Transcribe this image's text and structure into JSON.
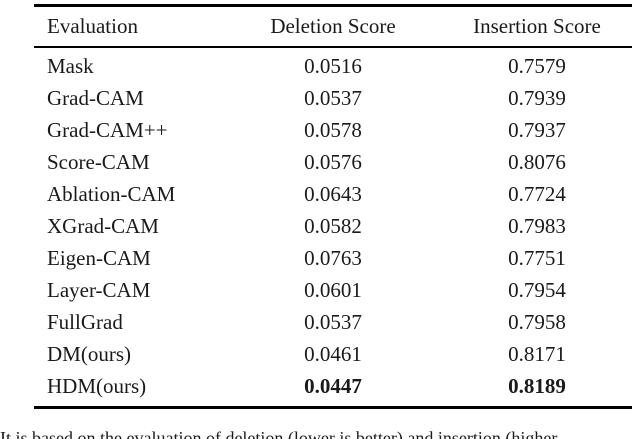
{
  "table": {
    "columns": [
      "Evaluation",
      "Deletion Score",
      "Insertion Score"
    ],
    "rows": [
      {
        "evaluation": "Mask",
        "deletion": "0.0516",
        "insertion": "0.7579",
        "bold_values": false
      },
      {
        "evaluation": "Grad-CAM",
        "deletion": "0.0537",
        "insertion": "0.7939",
        "bold_values": false
      },
      {
        "evaluation": "Grad-CAM++",
        "deletion": "0.0578",
        "insertion": "0.7937",
        "bold_values": false
      },
      {
        "evaluation": "Score-CAM",
        "deletion": "0.0576",
        "insertion": "0.8076",
        "bold_values": false
      },
      {
        "evaluation": "Ablation-CAM",
        "deletion": "0.0643",
        "insertion": "0.7724",
        "bold_values": false
      },
      {
        "evaluation": "XGrad-CAM",
        "deletion": "0.0582",
        "insertion": "0.7983",
        "bold_values": false
      },
      {
        "evaluation": "Eigen-CAM",
        "deletion": "0.0763",
        "insertion": "0.7751",
        "bold_values": false
      },
      {
        "evaluation": "Layer-CAM",
        "deletion": "0.0601",
        "insertion": "0.7954",
        "bold_values": false
      },
      {
        "evaluation": "FullGrad",
        "deletion": "0.0537",
        "insertion": "0.7958",
        "bold_values": false
      },
      {
        "evaluation": "DM(ours)",
        "deletion": "0.0461",
        "insertion": "0.8171",
        "bold_values": false
      },
      {
        "evaluation": "HDM(ours)",
        "deletion": "0.0447",
        "insertion": "0.8189",
        "bold_values": true
      }
    ]
  },
  "caption": {
    "clipped_line": "It is based on the evaluation of deletion (lower is better) and insertion (higher"
  },
  "colors": {
    "background": "#ffffff",
    "text": "#1a1a1a",
    "rule": "#000000"
  }
}
